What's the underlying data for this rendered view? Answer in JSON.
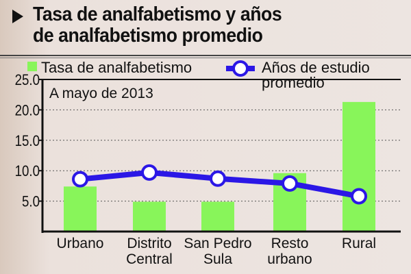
{
  "title_line1": "Tasa de analfabetismo y años",
  "title_line2": "de analfabetismo promedio",
  "chart_data": {
    "type": "bar+line",
    "subtitle": "A mayo de 2013",
    "categories": [
      [
        "Urbano"
      ],
      [
        "Distrito",
        "Central"
      ],
      [
        "San Pedro",
        "Sula"
      ],
      [
        "Resto",
        "urbano"
      ],
      [
        "Rural"
      ]
    ],
    "series": [
      {
        "name": "Tasa de analfabetismo",
        "type": "bar",
        "color": "#88f55a",
        "values": [
          7.4,
          4.9,
          4.9,
          9.6,
          21.3
        ]
      },
      {
        "name": "Años de estudio promedio",
        "type": "line",
        "color": "#2b17e6",
        "values": [
          8.6,
          9.7,
          8.7,
          7.9,
          5.8
        ]
      }
    ],
    "legend": [
      "Tasa de analfabetismo",
      "Años de estudio",
      "promedio"
    ],
    "yticks": [
      "5.0",
      "10.0",
      "15.0",
      "20.0",
      "25.0"
    ],
    "ylim": [
      0,
      25
    ],
    "grid": "dotted horizontal",
    "legend_position": "top"
  }
}
